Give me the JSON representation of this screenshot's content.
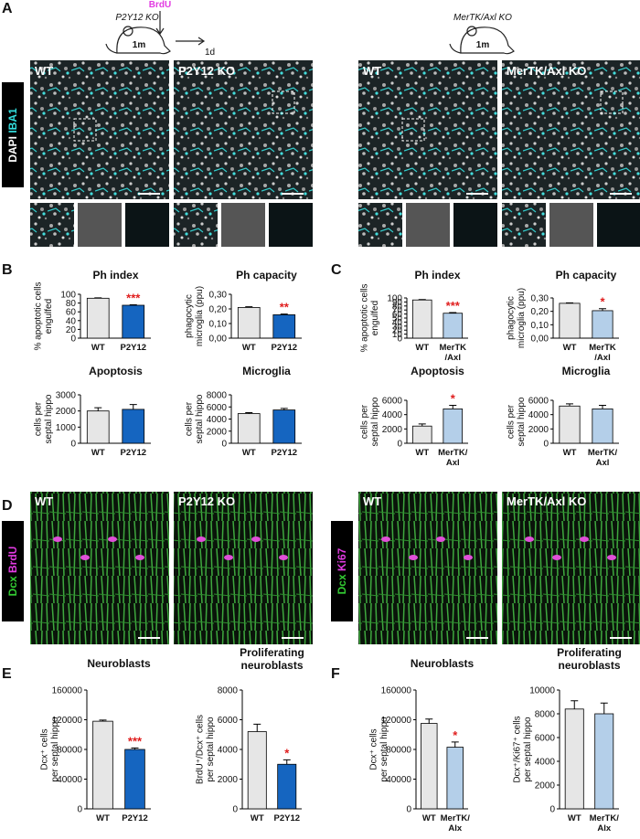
{
  "panel_labels": [
    "A",
    "B",
    "C",
    "D",
    "E",
    "F"
  ],
  "schematics": {
    "left": {
      "genotype": "P2Y12 KO",
      "injection": "BrdU",
      "age": "1m",
      "interval": "1d"
    },
    "right": {
      "genotype": "MerTK/Axl KO",
      "age": "1m"
    }
  },
  "micrographs": {
    "a_stain": [
      "DAPI",
      "IBA1"
    ],
    "a_labels": [
      "WT",
      "P2Y12 KO",
      "WT",
      "MerTK/Axl KO"
    ],
    "d_left_stain": [
      "Dcx",
      "BrdU"
    ],
    "d_right_stain": [
      "Dcx",
      "Ki67"
    ],
    "d_labels": [
      "WT",
      "P2Y12 KO",
      "WT",
      "MerTK/Axl KO"
    ]
  },
  "chart_data": [
    {
      "type": "bar",
      "title": "Ph index",
      "y_label": "% apoptotic cells\nengulfed",
      "categories": [
        "WT",
        "P2Y12"
      ],
      "values": [
        91,
        75
      ],
      "errors": [
        1,
        1
      ],
      "colors": [
        "#e6e6e6",
        "#1565c0"
      ],
      "significance": [
        null,
        "***"
      ],
      "ylim": [
        0,
        100
      ],
      "yticks": [
        0,
        20,
        40,
        60,
        80,
        100
      ]
    },
    {
      "type": "bar",
      "title": "Ph capacity",
      "y_label": "phagocytic\nmicroglia (ppu)",
      "categories": [
        "WT",
        "P2Y12"
      ],
      "values": [
        0.21,
        0.16
      ],
      "errors": [
        0.005,
        0.005
      ],
      "colors": [
        "#e6e6e6",
        "#1565c0"
      ],
      "significance": [
        null,
        "**"
      ],
      "ylim": [
        0,
        0.3
      ],
      "yticks": [
        {
          "value": 0,
          "label": "0,00"
        },
        {
          "value": 0.1,
          "label": "0,10"
        },
        {
          "value": 0.2,
          "label": "0,20"
        },
        {
          "value": 0.3,
          "label": "0,30"
        }
      ]
    },
    {
      "type": "bar",
      "title": "Apoptosis",
      "y_label": "cells per\nseptal hippo",
      "categories": [
        "WT",
        "P2Y12"
      ],
      "values": [
        2000,
        2100
      ],
      "errors": [
        200,
        300
      ],
      "colors": [
        "#e6e6e6",
        "#1565c0"
      ],
      "significance": [
        null,
        null
      ],
      "ylim": [
        0,
        3000
      ],
      "yticks": [
        0,
        1000,
        2000,
        3000
      ]
    },
    {
      "type": "bar",
      "title": "Microglia",
      "y_label": "cells per\nseptal hippo",
      "categories": [
        "WT",
        "P2Y12"
      ],
      "values": [
        4900,
        5500
      ],
      "errors": [
        150,
        250
      ],
      "colors": [
        "#e6e6e6",
        "#1565c0"
      ],
      "significance": [
        null,
        null
      ],
      "ylim": [
        0,
        8000
      ],
      "yticks": [
        0,
        2000,
        4000,
        6000,
        8000
      ]
    },
    {
      "type": "bar",
      "title": "Ph index",
      "y_label": "% apoptotic cells\nengulfed",
      "categories": [
        "WT",
        "MerTK\n/Axl"
      ],
      "values": [
        95,
        62
      ],
      "errors": [
        1,
        1.5
      ],
      "colors": [
        "#e6e6e6",
        "#b4cfe9"
      ],
      "significance": [
        null,
        "***"
      ],
      "ylim": [
        0,
        100
      ],
      "yticks": [
        0,
        10,
        20,
        30,
        40,
        50,
        60,
        70,
        80,
        90,
        100
      ]
    },
    {
      "type": "bar",
      "title": "Ph capacity",
      "y_label": "phagocytic\nmicroglia (ppu)",
      "categories": [
        "WT",
        "MerTK\n/Axl"
      ],
      "values": [
        0.26,
        0.205
      ],
      "errors": [
        0.003,
        0.015
      ],
      "colors": [
        "#e6e6e6",
        "#b4cfe9"
      ],
      "significance": [
        null,
        "*"
      ],
      "ylim": [
        0,
        0.3
      ],
      "yticks": [
        {
          "value": 0,
          "label": "0,00"
        },
        {
          "value": 0.1,
          "label": "0,10"
        },
        {
          "value": 0.2,
          "label": "0,20"
        },
        {
          "value": 0.3,
          "label": "0,30"
        }
      ]
    },
    {
      "type": "bar",
      "title": "Apoptosis",
      "y_label": "cells per\nseptal hippo",
      "categories": [
        "WT",
        "MerTK/\nAxl"
      ],
      "values": [
        2400,
        4800
      ],
      "errors": [
        300,
        500
      ],
      "colors": [
        "#e6e6e6",
        "#b4cfe9"
      ],
      "significance": [
        null,
        "*"
      ],
      "ylim": [
        0,
        6000
      ],
      "yticks": [
        0,
        2000,
        4000,
        6000
      ]
    },
    {
      "type": "bar",
      "title": "Microglia",
      "y_label": "cells per\nseptal hippo",
      "categories": [
        "WT",
        "MerTK/\nAxl"
      ],
      "values": [
        5200,
        4800
      ],
      "errors": [
        300,
        500
      ],
      "colors": [
        "#e6e6e6",
        "#b4cfe9"
      ],
      "significance": [
        null,
        null
      ],
      "ylim": [
        0,
        6000
      ],
      "yticks": [
        0,
        2000,
        4000,
        6000
      ]
    },
    {
      "type": "bar",
      "title": "Neuroblasts",
      "y_label": "Dcx⁺ cells\nper septal hippo",
      "categories": [
        "WT",
        "P2Y12"
      ],
      "values": [
        118000,
        80000
      ],
      "errors": [
        1500,
        2000
      ],
      "colors": [
        "#e6e6e6",
        "#1565c0"
      ],
      "significance": [
        null,
        "***"
      ],
      "ylim": [
        0,
        160000
      ],
      "yticks": [
        0,
        40000,
        80000,
        120000,
        160000
      ]
    },
    {
      "type": "bar",
      "title": "Proliferating\nneuroblasts",
      "y_label": "BrdU⁺/Dcx⁺ cells\nper septal hippo",
      "categories": [
        "WT",
        "P2Y12"
      ],
      "values": [
        5200,
        3000
      ],
      "errors": [
        500,
        300
      ],
      "colors": [
        "#e6e6e6",
        "#1565c0"
      ],
      "significance": [
        null,
        "*"
      ],
      "ylim": [
        0,
        8000
      ],
      "yticks": [
        0,
        2000,
        4000,
        6000,
        8000
      ]
    },
    {
      "type": "bar",
      "title": "Neuroblasts",
      "y_label": "Dcx⁺ cells\nper septal hippo",
      "categories": [
        "WT",
        "MerTK/\nAlx"
      ],
      "values": [
        115000,
        83000
      ],
      "errors": [
        6000,
        7000
      ],
      "colors": [
        "#e6e6e6",
        "#b4cfe9"
      ],
      "significance": [
        null,
        "*"
      ],
      "ylim": [
        0,
        160000
      ],
      "yticks": [
        0,
        40000,
        80000,
        120000,
        160000
      ]
    },
    {
      "type": "bar",
      "title": "Proliferating\nneuroblasts",
      "y_label": "Dcx⁺/Ki67⁺ cells\nper septal hippo",
      "categories": [
        "WT",
        "MerTK/\nAlx"
      ],
      "values": [
        8400,
        8000
      ],
      "errors": [
        700,
        900
      ],
      "colors": [
        "#e6e6e6",
        "#b4cfe9"
      ],
      "significance": [
        null,
        null
      ],
      "ylim": [
        0,
        10000
      ],
      "yticks": [
        0,
        2000,
        4000,
        6000,
        8000,
        10000
      ]
    }
  ]
}
